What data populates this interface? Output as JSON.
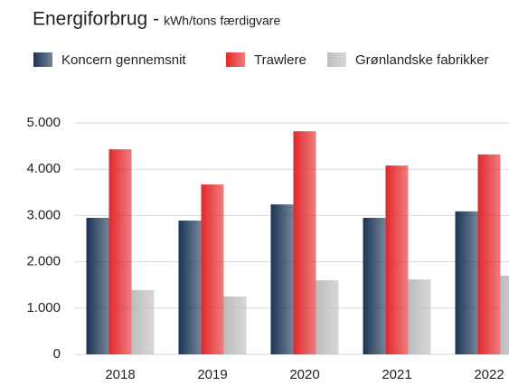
{
  "chart_data": {
    "type": "bar",
    "title": "Energiforbrug -",
    "subtitle": "kWh/tons færdigvare",
    "categories": [
      "2018",
      "2019",
      "2020",
      "2021",
      "2022"
    ],
    "series": [
      {
        "name": "Koncern gennemsnit",
        "color": "#1b3455",
        "values": [
          2950,
          2890,
          3240,
          2950,
          3090
        ]
      },
      {
        "name": "Trawlere",
        "color": "#e2282c",
        "values": [
          4430,
          3670,
          4820,
          4080,
          4320
        ]
      },
      {
        "name": "Grønlandske fabrikker",
        "color": "#bdbdbd",
        "values": [
          1390,
          1250,
          1600,
          1620,
          1700
        ]
      }
    ],
    "ylim": [
      0,
      5000
    ],
    "yticks": [
      0,
      {
        "value": 1000,
        "label": "1.000"
      },
      {
        "value": 2000,
        "label": "2.000"
      },
      {
        "value": 3000,
        "label": "3.000"
      },
      {
        "value": 4000,
        "label": "4.000"
      },
      {
        "value": 5000,
        "label": "5.000"
      }
    ],
    "grid": true
  }
}
